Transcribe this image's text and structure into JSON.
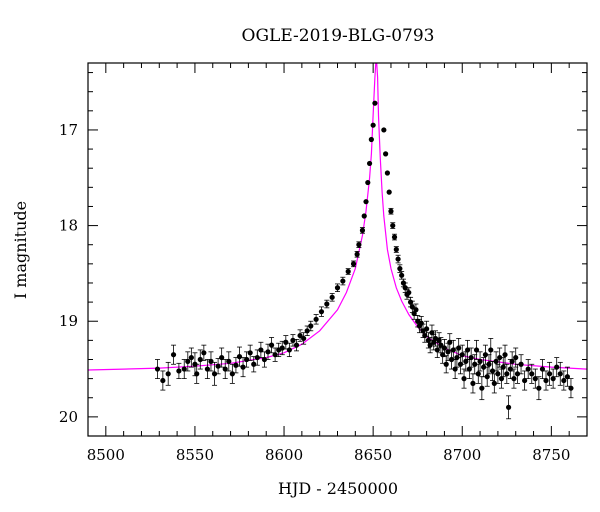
{
  "chart_data": {
    "type": "scatter",
    "title": "OGLE-2019-BLG-0793",
    "xlabel": "HJD - 2450000",
    "ylabel": "I magnitude",
    "xlim": [
      8490,
      8770
    ],
    "ylim": [
      20.2,
      16.3
    ],
    "y_inverted": true,
    "x_ticks": [
      8500,
      8550,
      8600,
      8650,
      8700,
      8750
    ],
    "y_ticks": [
      17,
      18,
      19,
      20
    ],
    "x_tick_labels": [
      "8500",
      "8550",
      "8600",
      "8650",
      "8700",
      "8750"
    ],
    "y_tick_labels": [
      "17",
      "18",
      "19",
      "20"
    ],
    "grid": false,
    "colors": {
      "model": "#ff00ff",
      "points": "#000000"
    },
    "model": {
      "name": "",
      "x": [
        8490,
        8510,
        8530,
        8550,
        8570,
        8590,
        8600,
        8610,
        8620,
        8630,
        8635,
        8640,
        8644,
        8646,
        8648,
        8649,
        8650,
        8651,
        8651.5,
        8652,
        8652.5,
        8653,
        8654,
        8655,
        8656,
        8658,
        8660,
        8663,
        8666,
        8670,
        8675,
        8680,
        8690,
        8700,
        8710,
        8730,
        8750,
        8770
      ],
      "y": [
        19.51,
        19.5,
        19.49,
        19.47,
        19.44,
        19.38,
        19.33,
        19.24,
        19.1,
        18.88,
        18.7,
        18.45,
        18.1,
        17.85,
        17.5,
        17.25,
        16.85,
        16.45,
        16.3,
        16.3,
        16.45,
        16.85,
        17.3,
        17.65,
        17.9,
        18.25,
        18.45,
        18.65,
        18.79,
        18.93,
        19.06,
        19.16,
        19.28,
        19.36,
        19.4,
        19.45,
        19.48,
        19.5
      ]
    },
    "points": {
      "x": [
        8529,
        8532,
        8535,
        8538,
        8541,
        8544,
        8546,
        8548,
        8550,
        8551,
        8553,
        8555,
        8557,
        8559,
        8561,
        8563,
        8565,
        8567,
        8569,
        8571,
        8573,
        8575,
        8577,
        8579,
        8581,
        8583,
        8585,
        8587,
        8589,
        8591,
        8593,
        8595,
        8597,
        8599,
        8601,
        8603,
        8605,
        8607,
        8609,
        8611,
        8613,
        8615,
        8618,
        8621,
        8624,
        8627,
        8630,
        8633,
        8636,
        8639,
        8641,
        8642,
        8644,
        8645,
        8646,
        8647,
        8648,
        8649,
        8650,
        8651,
        8656,
        8657,
        8658,
        8659,
        8660,
        8661,
        8662,
        8663,
        8664,
        8665,
        8666,
        8667,
        8668,
        8669,
        8670,
        8671,
        8672,
        8673,
        8674,
        8675,
        8676,
        8677,
        8678,
        8679,
        8680,
        8681,
        8682,
        8683,
        8684,
        8685,
        8686,
        8687,
        8688,
        8689,
        8690,
        8691,
        8692,
        8693,
        8694,
        8695,
        8696,
        8697,
        8698,
        8699,
        8700,
        8701,
        8702,
        8703,
        8704,
        8705,
        8706,
        8707,
        8708,
        8709,
        8710,
        8711,
        8712,
        8713,
        8714,
        8715,
        8716,
        8717,
        8718,
        8719,
        8720,
        8721,
        8722,
        8723,
        8724,
        8725,
        8726,
        8727,
        8728,
        8729,
        8730,
        8731,
        8733,
        8735,
        8737,
        8739,
        8741,
        8743,
        8745,
        8747,
        8749,
        8751,
        8753,
        8755,
        8757,
        8759,
        8761
      ],
      "y": [
        19.5,
        19.62,
        19.55,
        19.35,
        19.52,
        19.5,
        19.42,
        19.38,
        19.45,
        19.55,
        19.4,
        19.33,
        19.5,
        19.42,
        19.55,
        19.47,
        19.38,
        19.5,
        19.42,
        19.55,
        19.46,
        19.37,
        19.48,
        19.4,
        19.33,
        19.45,
        19.38,
        19.3,
        19.4,
        19.32,
        19.25,
        19.35,
        19.3,
        19.28,
        19.22,
        19.3,
        19.2,
        19.25,
        19.15,
        19.18,
        19.1,
        19.05,
        18.98,
        18.9,
        18.82,
        18.75,
        18.65,
        18.58,
        18.48,
        18.4,
        18.3,
        18.2,
        18.05,
        17.9,
        17.75,
        17.55,
        17.35,
        17.1,
        16.95,
        16.72,
        17.0,
        17.25,
        17.45,
        17.65,
        17.85,
        18.0,
        18.12,
        18.25,
        18.35,
        18.45,
        18.52,
        18.6,
        18.65,
        18.72,
        18.7,
        18.8,
        18.85,
        18.92,
        18.88,
        19.0,
        19.05,
        19.02,
        19.1,
        19.15,
        19.08,
        19.2,
        19.25,
        19.12,
        19.22,
        19.18,
        19.3,
        19.2,
        19.25,
        19.35,
        19.28,
        19.45,
        19.32,
        19.22,
        19.4,
        19.3,
        19.5,
        19.38,
        19.28,
        19.45,
        19.35,
        19.6,
        19.42,
        19.3,
        19.5,
        19.38,
        19.65,
        19.45,
        19.3,
        19.55,
        19.42,
        19.7,
        19.48,
        19.35,
        19.58,
        19.45,
        19.3,
        19.52,
        19.65,
        19.42,
        19.55,
        19.38,
        19.6,
        19.48,
        19.35,
        19.55,
        19.9,
        19.5,
        19.42,
        19.6,
        19.38,
        19.55,
        19.45,
        19.62,
        19.5,
        19.55,
        19.6,
        19.7,
        19.5,
        19.62,
        19.55,
        19.6,
        19.48,
        19.55,
        19.62,
        19.58,
        19.7
      ],
      "err": [
        0.1,
        0.1,
        0.12,
        0.1,
        0.08,
        0.1,
        0.1,
        0.1,
        0.12,
        0.1,
        0.1,
        0.08,
        0.1,
        0.1,
        0.12,
        0.08,
        0.1,
        0.1,
        0.1,
        0.1,
        0.08,
        0.1,
        0.1,
        0.08,
        0.08,
        0.08,
        0.08,
        0.08,
        0.08,
        0.08,
        0.08,
        0.07,
        0.07,
        0.07,
        0.07,
        0.07,
        0.06,
        0.06,
        0.06,
        0.06,
        0.05,
        0.05,
        0.05,
        0.05,
        0.04,
        0.04,
        0.04,
        0.04,
        0.03,
        0.03,
        0.03,
        0.03,
        0.03,
        0.02,
        0.02,
        0.02,
        0.02,
        0.02,
        0.02,
        0.02,
        0.02,
        0.02,
        0.02,
        0.02,
        0.03,
        0.03,
        0.03,
        0.03,
        0.04,
        0.04,
        0.04,
        0.04,
        0.05,
        0.05,
        0.05,
        0.05,
        0.06,
        0.06,
        0.06,
        0.06,
        0.07,
        0.07,
        0.07,
        0.07,
        0.08,
        0.08,
        0.08,
        0.08,
        0.08,
        0.08,
        0.08,
        0.08,
        0.08,
        0.09,
        0.09,
        0.09,
        0.09,
        0.09,
        0.1,
        0.1,
        0.1,
        0.1,
        0.1,
        0.1,
        0.1,
        0.1,
        0.1,
        0.1,
        0.1,
        0.1,
        0.1,
        0.1,
        0.1,
        0.1,
        0.1,
        0.12,
        0.1,
        0.1,
        0.1,
        0.1,
        0.12,
        0.1,
        0.1,
        0.1,
        0.1,
        0.1,
        0.1,
        0.1,
        0.1,
        0.1,
        0.12,
        0.1,
        0.1,
        0.1,
        0.1,
        0.1,
        0.1,
        0.1,
        0.1,
        0.1,
        0.1,
        0.12,
        0.1,
        0.1,
        0.12,
        0.1,
        0.1,
        0.12,
        0.1,
        0.1,
        0.1
      ]
    }
  }
}
